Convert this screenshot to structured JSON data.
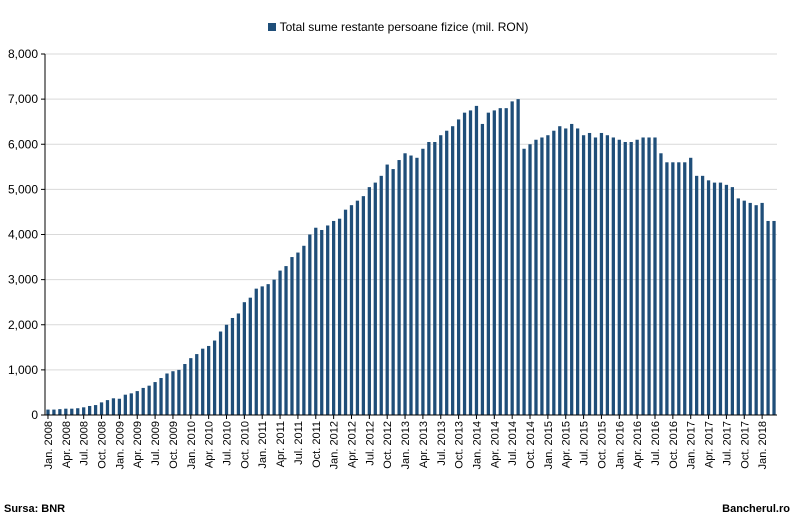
{
  "colors": {
    "series": "#1f4e79",
    "grid": "#d9d9d9",
    "axis": "#000000"
  },
  "footer": {
    "source": "Sursa: BNR",
    "brand": "Bancherul.ro"
  },
  "chart_data": {
    "type": "bar",
    "legend_position": "top-center",
    "grid": true,
    "ylim": [
      0,
      8000
    ],
    "yticks": [
      "0",
      "1,000",
      "2,000",
      "3,000",
      "4,000",
      "5,000",
      "6,000",
      "7,000",
      "8,000"
    ],
    "ytick_values": [
      0,
      1000,
      2000,
      3000,
      4000,
      5000,
      6000,
      7000,
      8000
    ],
    "xtick_labels": [
      "Jan. 2008",
      "Apr. 2008",
      "Jul. 2008",
      "Oct. 2008",
      "Jan. 2009",
      "Apr. 2009",
      "Jul. 2009",
      "Oct. 2009",
      "Jan. 2010",
      "Apr. 2010",
      "Jul. 2010",
      "Oct. 2010",
      "Jan. 2011",
      "Apr. 2011",
      "Jul. 2011",
      "Oct. 2011",
      "Jan. 2012",
      "Apr. 2012",
      "Jul. 2012",
      "Oct. 2012",
      "Jan. 2013",
      "Apr. 2013",
      "Jul. 2013",
      "Oct. 2013",
      "Jan. 2014",
      "Apr. 2014",
      "Jul. 2014",
      "Oct. 2014",
      "Jan. 2015",
      "Apr. 2015",
      "Jul. 2015",
      "Oct. 2015",
      "Jan. 2016",
      "Apr. 2016",
      "Jul. 2016",
      "Oct. 2016",
      "Jan. 2017",
      "Apr. 2017",
      "Jul. 2017",
      "Oct. 2017",
      "Jan. 2018"
    ],
    "series": [
      {
        "name": "Total sume restante persoane fizice (mil. RON)",
        "values": [
          120,
          120,
          130,
          140,
          140,
          150,
          170,
          200,
          220,
          280,
          330,
          370,
          360,
          450,
          480,
          530,
          600,
          650,
          730,
          820,
          920,
          970,
          1000,
          1130,
          1260,
          1350,
          1470,
          1530,
          1650,
          1850,
          2000,
          2150,
          2250,
          2500,
          2600,
          2800,
          2850,
          2900,
          3000,
          3200,
          3300,
          3500,
          3600,
          3750,
          4000,
          4150,
          4100,
          4200,
          4300,
          4350,
          4550,
          4650,
          4750,
          4850,
          5050,
          5150,
          5300,
          5550,
          5450,
          5650,
          5800,
          5750,
          5700,
          5900,
          6050,
          6050,
          6200,
          6300,
          6400,
          6550,
          6700,
          6750,
          6850,
          6450,
          6700,
          6750,
          6800,
          6800,
          6950,
          7000,
          5900,
          6000,
          6100,
          6150,
          6200,
          6300,
          6400,
          6350,
          6450,
          6350,
          6200,
          6250,
          6150,
          6250,
          6200,
          6150,
          6100,
          6050,
          6050,
          6100,
          6150,
          6150,
          6150,
          5800,
          5600,
          5600,
          5600,
          5600,
          5700,
          5300,
          5300,
          5200,
          5150,
          5150,
          5100,
          5050,
          4800,
          4750,
          4700,
          4650,
          4700,
          4300,
          4300
        ]
      }
    ]
  }
}
